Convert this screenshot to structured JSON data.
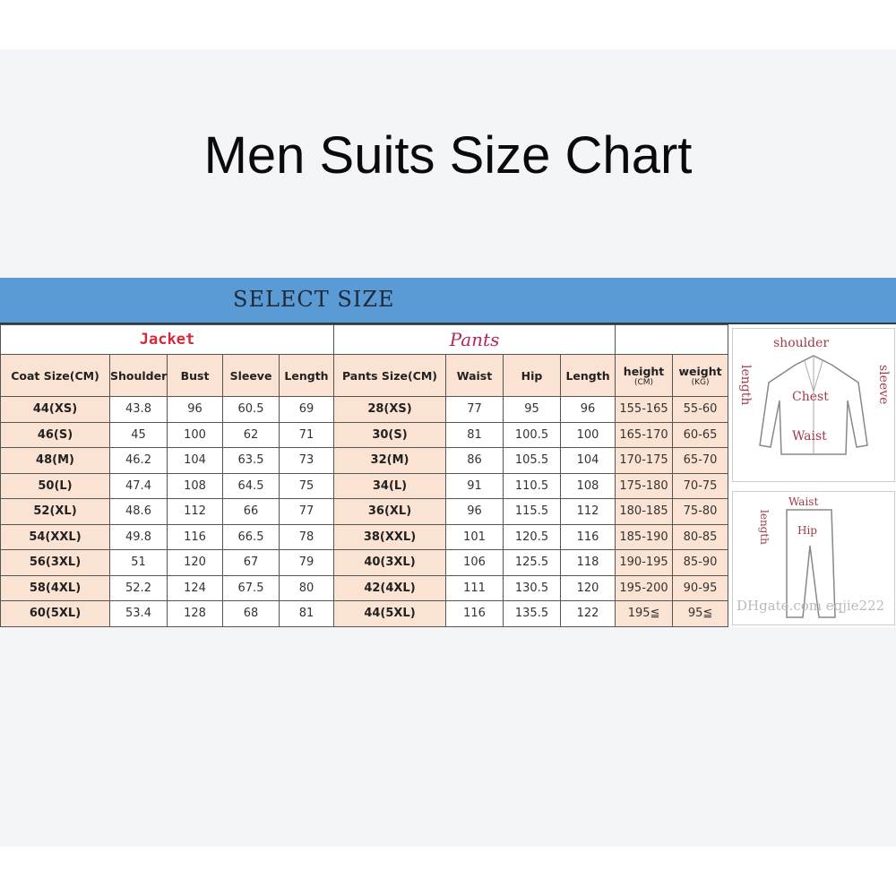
{
  "title": "Men Suits Size Chart",
  "select_size": "SELECT SIZE",
  "sections": {
    "jacket": "Jacket",
    "pants": "Pants"
  },
  "headers": [
    "Coat Size(CM)",
    "Shoulder",
    "Bust",
    "Sleeve",
    "Length",
    "Pants Size(CM)",
    "Waist",
    "Hip",
    "Length"
  ],
  "height_header": {
    "label": "height",
    "unit": "(CM)"
  },
  "weight_header": {
    "label": "weight",
    "unit": "(KG)"
  },
  "rows": [
    [
      "44(XS)",
      "43.8",
      "96",
      "60.5",
      "69",
      "28(XS)",
      "77",
      "95",
      "96",
      "155-165",
      "55-60"
    ],
    [
      "46(S)",
      "45",
      "100",
      "62",
      "71",
      "30(S)",
      "81",
      "100.5",
      "100",
      "165-170",
      "60-65"
    ],
    [
      "48(M)",
      "46.2",
      "104",
      "63.5",
      "73",
      "32(M)",
      "86",
      "105.5",
      "104",
      "170-175",
      "65-70"
    ],
    [
      "50(L)",
      "47.4",
      "108",
      "64.5",
      "75",
      "34(L)",
      "91",
      "110.5",
      "108",
      "175-180",
      "70-75"
    ],
    [
      "52(XL)",
      "48.6",
      "112",
      "66",
      "77",
      "36(XL)",
      "96",
      "115.5",
      "112",
      "180-185",
      "75-80"
    ],
    [
      "54(XXL)",
      "49.8",
      "116",
      "66.5",
      "78",
      "38(XXL)",
      "101",
      "120.5",
      "116",
      "185-190",
      "80-85"
    ],
    [
      "56(3XL)",
      "51",
      "120",
      "67",
      "79",
      "40(3XL)",
      "106",
      "125.5",
      "118",
      "190-195",
      "85-90"
    ],
    [
      "58(4XL)",
      "52.2",
      "124",
      "67.5",
      "80",
      "42(4XL)",
      "111",
      "130.5",
      "120",
      "195-200",
      "90-95"
    ],
    [
      "60(5XL)",
      "53.4",
      "128",
      "68",
      "81",
      "44(5XL)",
      "116",
      "135.5",
      "122",
      "195≦",
      "95≦"
    ]
  ],
  "jacket_diagram": {
    "shoulder": "shoulder",
    "length": "length",
    "sleeve": "sleeve",
    "chest": "Chest",
    "waist": "Waist"
  },
  "pants_diagram": {
    "waist": "Waist",
    "hip": "Hip",
    "length": "length"
  },
  "watermark": "DHgate.com eqjie222",
  "colors": {
    "header_blue": "#5b9bd5",
    "pink_cell": "#fbe3d3",
    "jacket_red": "#d32a3a",
    "pants_red": "#b4265a"
  }
}
